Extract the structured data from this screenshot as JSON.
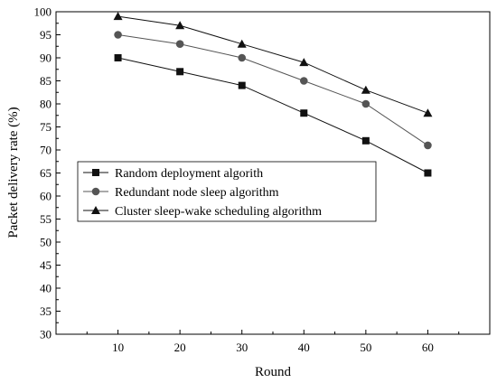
{
  "chart_data": {
    "type": "line",
    "xlabel": "Round",
    "ylabel": "Packet delivery rate (%)",
    "x": [
      10,
      20,
      30,
      40,
      50,
      60
    ],
    "xticks": [
      10,
      20,
      30,
      40,
      50,
      60
    ],
    "xlim": [
      0,
      70
    ],
    "ylim": [
      30,
      100
    ],
    "yticks": [
      30,
      35,
      40,
      45,
      50,
      55,
      60,
      65,
      70,
      75,
      80,
      85,
      90,
      95,
      100
    ],
    "grid": false,
    "legend_position": "center-left",
    "series": [
      {
        "name": "Random deployment algorith",
        "values": [
          90,
          87,
          84,
          78,
          72,
          65
        ],
        "marker": "square",
        "color": "#111111"
      },
      {
        "name": "Redundant node sleep algorithm",
        "values": [
          95,
          93,
          90,
          85,
          80,
          71
        ],
        "marker": "circle",
        "color": "#555555"
      },
      {
        "name": "Cluster sleep-wake scheduling algorithm",
        "values": [
          99,
          97,
          93,
          89,
          83,
          78
        ],
        "marker": "triangle",
        "color": "#111111"
      }
    ]
  }
}
